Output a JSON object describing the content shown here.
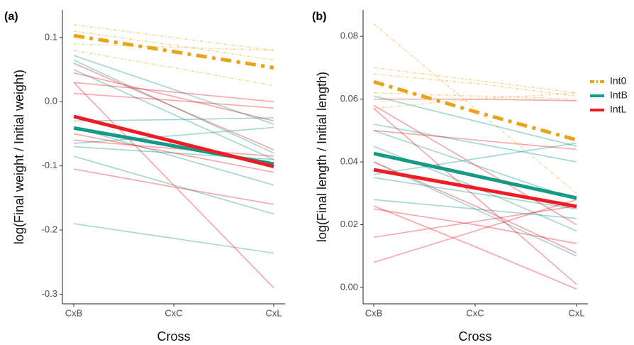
{
  "chart_data": [
    {
      "type": "line",
      "label": "(a)",
      "x_label": "Cross",
      "y_label": "log(Final weight / Initial weight)",
      "categories": [
        "CxB",
        "CxC",
        "CxL"
      ],
      "ylim": [
        -0.315,
        0.143
      ],
      "yticks": [
        -0.3,
        -0.2,
        -0.1,
        {
          "value": 0,
          "label": "0.0"
        },
        0.1
      ],
      "series": [
        {
          "color": "#E8A317",
          "linestyle": "dashdot",
          "values": [
            0.103,
            0.078,
            0.053
          ],
          "individual": [
            [
              0.12,
              0.1,
              0.08
            ],
            [
              0.09,
              0.085,
              0.08
            ],
            [
              0.08,
              0.053,
              0.025
            ],
            [
              0.11,
              0.088,
              0.065
            ]
          ]
        },
        {
          "color": "#159A86",
          "linestyle": "solid",
          "values": [
            -0.041,
            -0.069,
            -0.097
          ],
          "individual": [
            [
              0.072,
              0.019,
              -0.035
            ],
            [
              0.05,
              -0.02,
              -0.09
            ],
            [
              -0.19,
              -0.213,
              -0.236
            ],
            [
              -0.03,
              -0.028,
              -0.025
            ],
            [
              -0.065,
              -0.053,
              -0.04
            ],
            [
              -0.085,
              -0.13,
              -0.175
            ],
            [
              -0.04,
              -0.085,
              -0.13
            ],
            [
              -0.07,
              -0.08,
              -0.09
            ],
            [
              0.065,
              -0.008,
              -0.08
            ]
          ]
        },
        {
          "color": "#EE1C25",
          "linestyle": "solid",
          "values": [
            -0.023,
            -0.062,
            -0.101
          ],
          "individual": [
            [
              0.06,
              -0.008,
              -0.075
            ],
            [
              0.03,
              0.015,
              0
            ],
            [
              0.03,
              -0.13,
              -0.29
            ],
            [
              0.013,
              0.002,
              -0.01
            ],
            [
              -0.05,
              -0.08,
              -0.11
            ],
            [
              -0.105,
              -0.133,
              -0.16
            ],
            [
              -0.06,
              -0.073,
              -0.085
            ],
            [
              0.045,
              0.008,
              -0.03
            ]
          ]
        }
      ]
    },
    {
      "type": "line",
      "label": "(b)",
      "x_label": "Cross",
      "y_label": "log(Final length / Initial length)",
      "categories": [
        "CxB",
        "CxC",
        "CxL"
      ],
      "ylim": [
        -0.0052,
        0.0884
      ],
      "yticks": [
        {
          "value": 0,
          "label": "0.00"
        },
        0.02,
        0.04,
        0.06,
        0.08
      ],
      "legend": "right",
      "series": [
        {
          "name": "Int0",
          "color": "#E8A317",
          "linestyle": "dashdot",
          "values": [
            0.0655,
            0.056,
            0.047
          ],
          "individual": [
            [
              0.084,
              0.057,
              0.03
            ],
            [
              0.07,
              0.066,
              0.062
            ],
            [
              0.068,
              0.065,
              0.061
            ],
            [
              0.057,
              0.06,
              0.062
            ],
            [
              0.062,
              0.061,
              0.06
            ]
          ]
        },
        {
          "name": "IntB",
          "color": "#159A86",
          "linestyle": "solid",
          "values": [
            0.0427,
            0.0356,
            0.0285
          ],
          "individual": [
            [
              0.061,
              0.053,
              0.045
            ],
            [
              0.052,
              0.046,
              0.04
            ],
            [
              0.045,
              0.032,
              0.018
            ],
            [
              0.036,
              0.041,
              0.046
            ],
            [
              0.028,
              0.025,
              0.022
            ],
            [
              0.04,
              0.025,
              0.01
            ],
            [
              0.05,
              0.039,
              0.028
            ],
            [
              0.035,
              0.03,
              0.025
            ]
          ]
        },
        {
          "name": "IntL",
          "color": "#EE1C25",
          "linestyle": "solid",
          "values": [
            0.0375,
            0.0317,
            0.0258
          ],
          "individual": [
            [
              0.06,
              0.06,
              0.0595
            ],
            [
              0.057,
              0.029,
              0.001
            ],
            [
              0.05,
              0.047,
              0.044
            ],
            [
              0.026,
              0.013,
              -0.0005
            ],
            [
              0.025,
              0.02,
              0.014
            ],
            [
              0.016,
              0.021,
              0.026
            ],
            [
              0.008,
              0.018,
              0.028
            ],
            [
              0.058,
              0.039,
              0.02
            ],
            [
              0.04,
              0.026,
              0.011
            ]
          ]
        }
      ]
    }
  ]
}
